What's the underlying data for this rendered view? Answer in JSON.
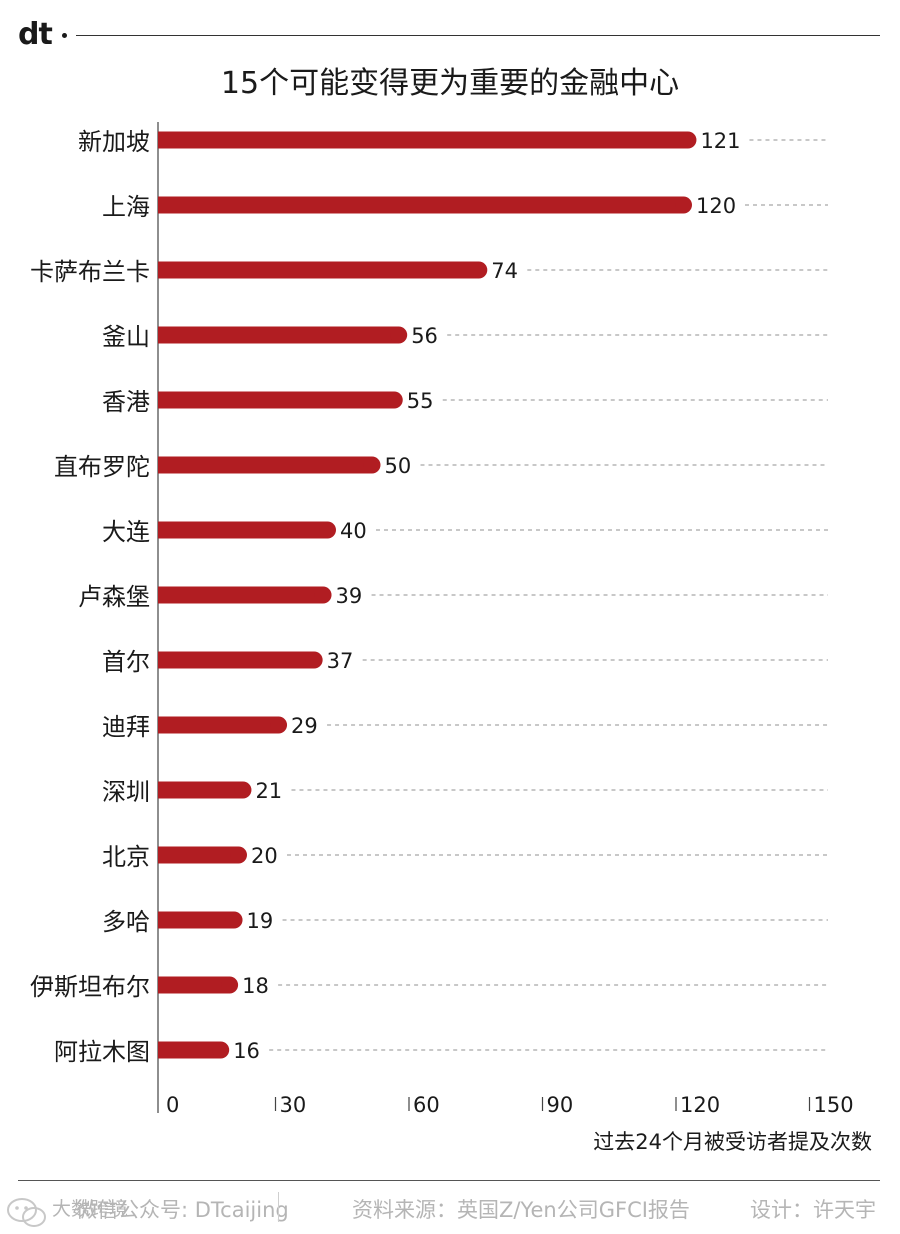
{
  "brand": {
    "logo_text": "dt"
  },
  "chart_data": {
    "type": "bar",
    "orientation": "horizontal",
    "title": "15个可能变得更为重要的金融中心",
    "categories": [
      "新加坡",
      "上海",
      "卡萨布兰卡",
      "釜山",
      "香港",
      "直布罗陀",
      "大连",
      "卢森堡",
      "首尔",
      "迪拜",
      "深圳",
      "北京",
      "多哈",
      "伊斯坦布尔",
      "阿拉木图"
    ],
    "values": [
      121,
      120,
      74,
      56,
      55,
      50,
      40,
      39,
      37,
      29,
      21,
      20,
      19,
      18,
      16
    ],
    "xlabel": "过去24个月被受访者提及次数",
    "xlim": [
      0,
      150
    ],
    "xticks": [
      0,
      30,
      60,
      90,
      120,
      150
    ],
    "xtick_labels": [
      "0",
      "30",
      "60",
      "90",
      "120",
      "150"
    ],
    "bar_color": "#b11d22",
    "grid": "dashed guide lines after each bar",
    "legend": "none"
  },
  "footer": {
    "wechat": "微信公众号: DTcaijing",
    "source": "资料来源：英国Z/Yen公司GFCI报告",
    "design": "设计：许天宇",
    "watermark": "大数跨境"
  }
}
